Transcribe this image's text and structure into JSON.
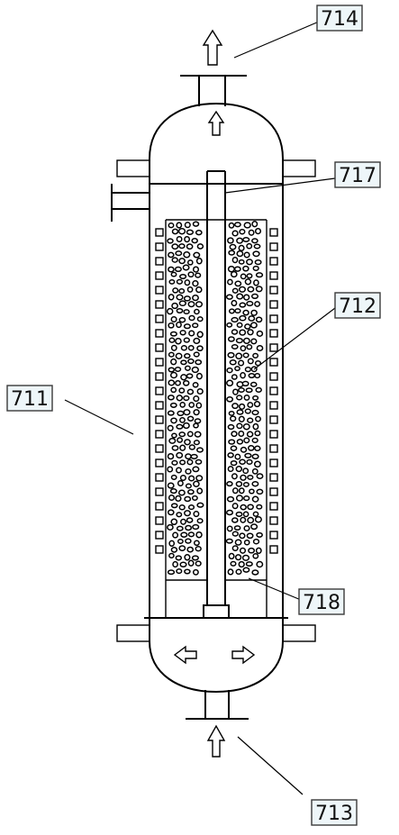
{
  "labels": {
    "outlet_top": "714",
    "outer_shell": "711",
    "catalyst_bed": "712",
    "inlet_bottom": "713",
    "central_tube": "717",
    "bed_support": "718"
  },
  "colors": {
    "ink": "#000000",
    "label_box_fill": "#eef6f9",
    "background": "#ffffff"
  },
  "icons": [
    "arrow-up-icon",
    "arrow-left-icon",
    "arrow-right-icon"
  ]
}
